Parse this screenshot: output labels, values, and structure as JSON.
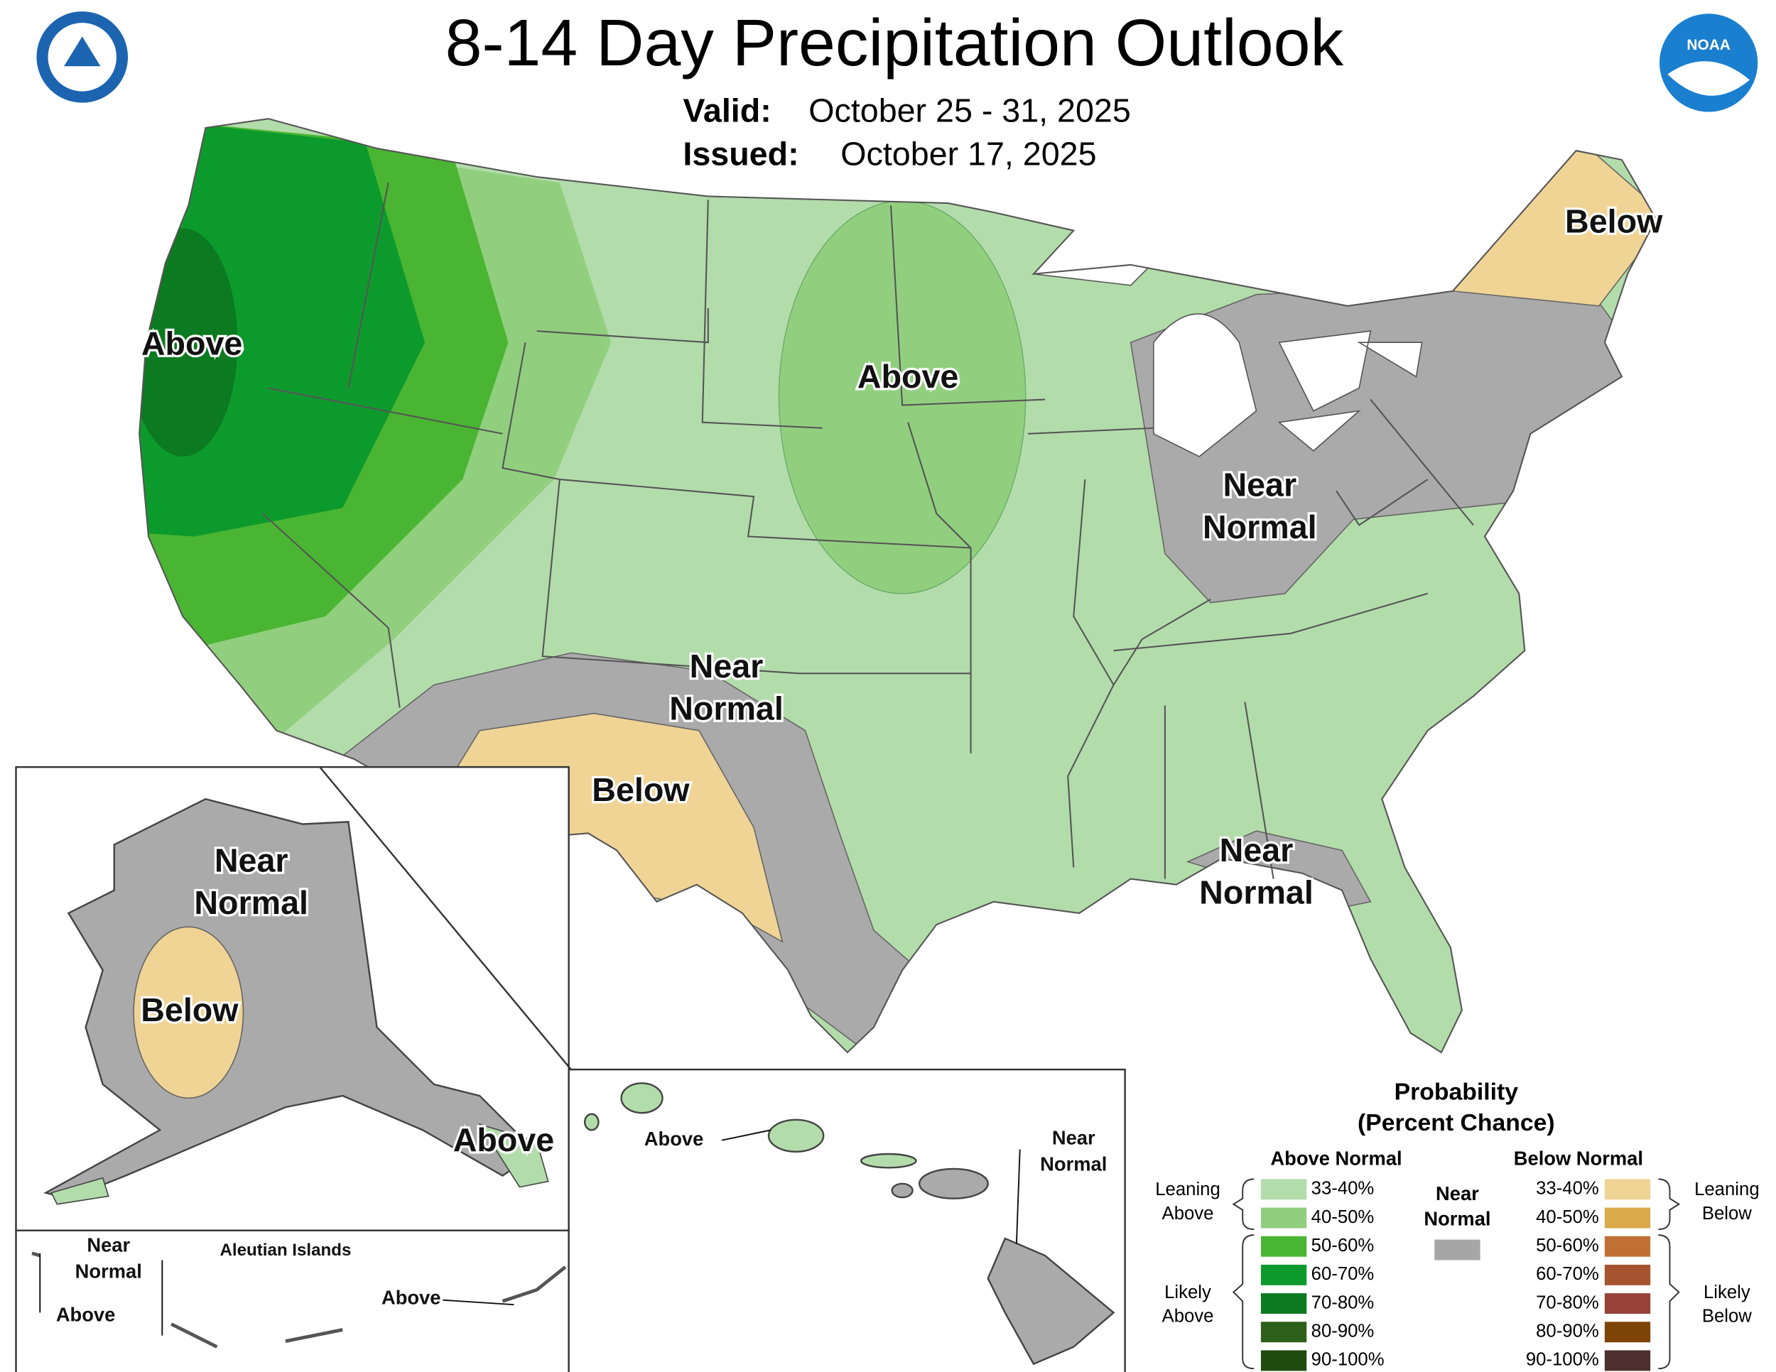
{
  "header": {
    "title": "8-14 Day Precipitation Outlook",
    "valid_label": "Valid:",
    "valid_dates": "October 25 - 31, 2025",
    "issued_label": "Issued:",
    "issued_date": "October 17, 2025"
  },
  "logo_text": "NOAA",
  "map_labels": [
    {
      "lines": [
        "Above"
      ]
    },
    {
      "lines": [
        "Above"
      ]
    },
    {
      "lines": [
        "Near",
        "Normal"
      ]
    },
    {
      "lines": [
        "Below"
      ]
    },
    {
      "lines": [
        "Near",
        "Normal"
      ]
    },
    {
      "lines": [
        "Below"
      ]
    },
    {
      "lines": [
        "Near",
        "Normal"
      ]
    },
    {
      "lines": [
        "Near",
        "Normal"
      ]
    },
    {
      "lines": [
        "Below"
      ]
    },
    {
      "lines": [
        "Above"
      ]
    },
    {
      "lines": [
        "Near",
        "Normal"
      ]
    },
    {
      "lines": [
        "Above"
      ]
    },
    {
      "lines": [
        "Aleutian Islands"
      ]
    },
    {
      "lines": [
        "Above"
      ]
    },
    {
      "lines": [
        "Above"
      ]
    },
    {
      "lines": [
        "Near",
        "Normal"
      ]
    }
  ],
  "legend": {
    "title_lines": [
      "Probability",
      "(Percent Chance)"
    ],
    "above_heading": "Above Normal",
    "below_heading": "Below Normal",
    "near_lines": [
      "Near",
      "Normal"
    ],
    "near_color": "#a6a6a6",
    "leaning_above": [
      "Leaning",
      "Above"
    ],
    "likely_above": [
      "Likely",
      "Above"
    ],
    "leaning_below": [
      "Leaning",
      "Below"
    ],
    "likely_below": [
      "Likely",
      "Below"
    ],
    "above": [
      {
        "range": "33-40%",
        "color": "#b3dcab"
      },
      {
        "range": "40-50%",
        "color": "#91cf7f"
      },
      {
        "range": "50-60%",
        "color": "#4ab532"
      },
      {
        "range": "60-70%",
        "color": "#0d9a2d"
      },
      {
        "range": "70-80%",
        "color": "#0c7a20"
      },
      {
        "range": "80-90%",
        "color": "#2d5e1a"
      },
      {
        "range": "90-100%",
        "color": "#1f4a10"
      }
    ],
    "below": [
      {
        "range": "33-40%",
        "color": "#f0d495"
      },
      {
        "range": "40-50%",
        "color": "#d9a94a"
      },
      {
        "range": "50-60%",
        "color": "#c17033"
      },
      {
        "range": "60-70%",
        "color": "#a65330"
      },
      {
        "range": "70-80%",
        "color": "#964238"
      },
      {
        "range": "80-90%",
        "color": "#7e4407"
      },
      {
        "range": "90-100%",
        "color": "#4e2e2e"
      }
    ]
  }
}
